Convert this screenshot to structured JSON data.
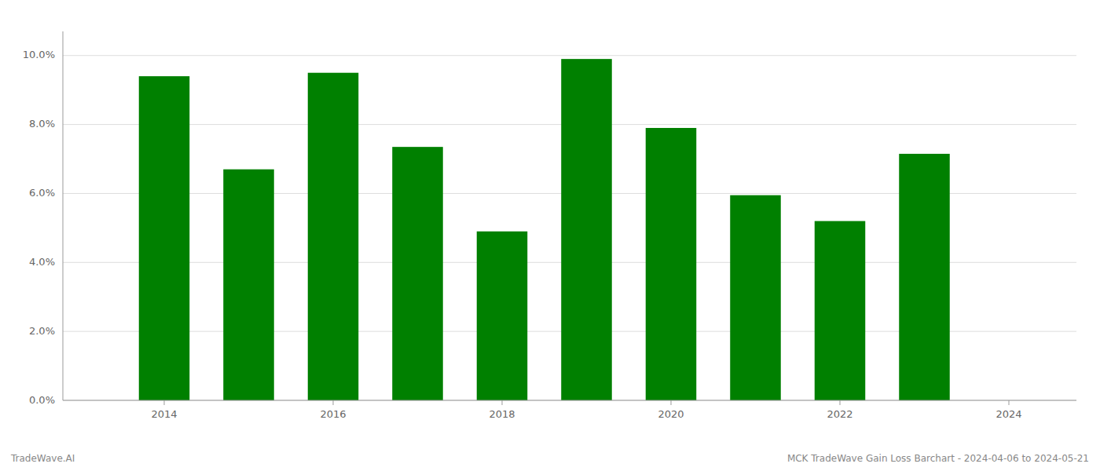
{
  "chart_data": {
    "type": "bar",
    "x": [
      2014,
      2015,
      2016,
      2017,
      2018,
      2019,
      2020,
      2021,
      2022,
      2023
    ],
    "values": [
      0.094,
      0.067,
      0.095,
      0.0735,
      0.049,
      0.099,
      0.079,
      0.0595,
      0.052,
      0.0715
    ],
    "color": "#008000",
    "xlim": [
      2012.8,
      2024.8
    ],
    "xticks": [
      2014,
      2016,
      2018,
      2020,
      2022,
      2024
    ],
    "ylim": [
      0,
      0.107
    ],
    "yticks": [
      {
        "value": 0.0,
        "label": "0.0%"
      },
      {
        "value": 0.02,
        "label": "2.0%"
      },
      {
        "value": 0.04,
        "label": "4.0%"
      },
      {
        "value": 0.06,
        "label": "6.0%"
      },
      {
        "value": 0.08,
        "label": "8.0%"
      },
      {
        "value": 0.1,
        "label": "10.0%"
      }
    ],
    "grid": true,
    "annotations": [
      "TradeWave.AI",
      "MCK TradeWave Gain Loss Barchart - 2024-04-06 to 2024-05-21"
    ]
  }
}
